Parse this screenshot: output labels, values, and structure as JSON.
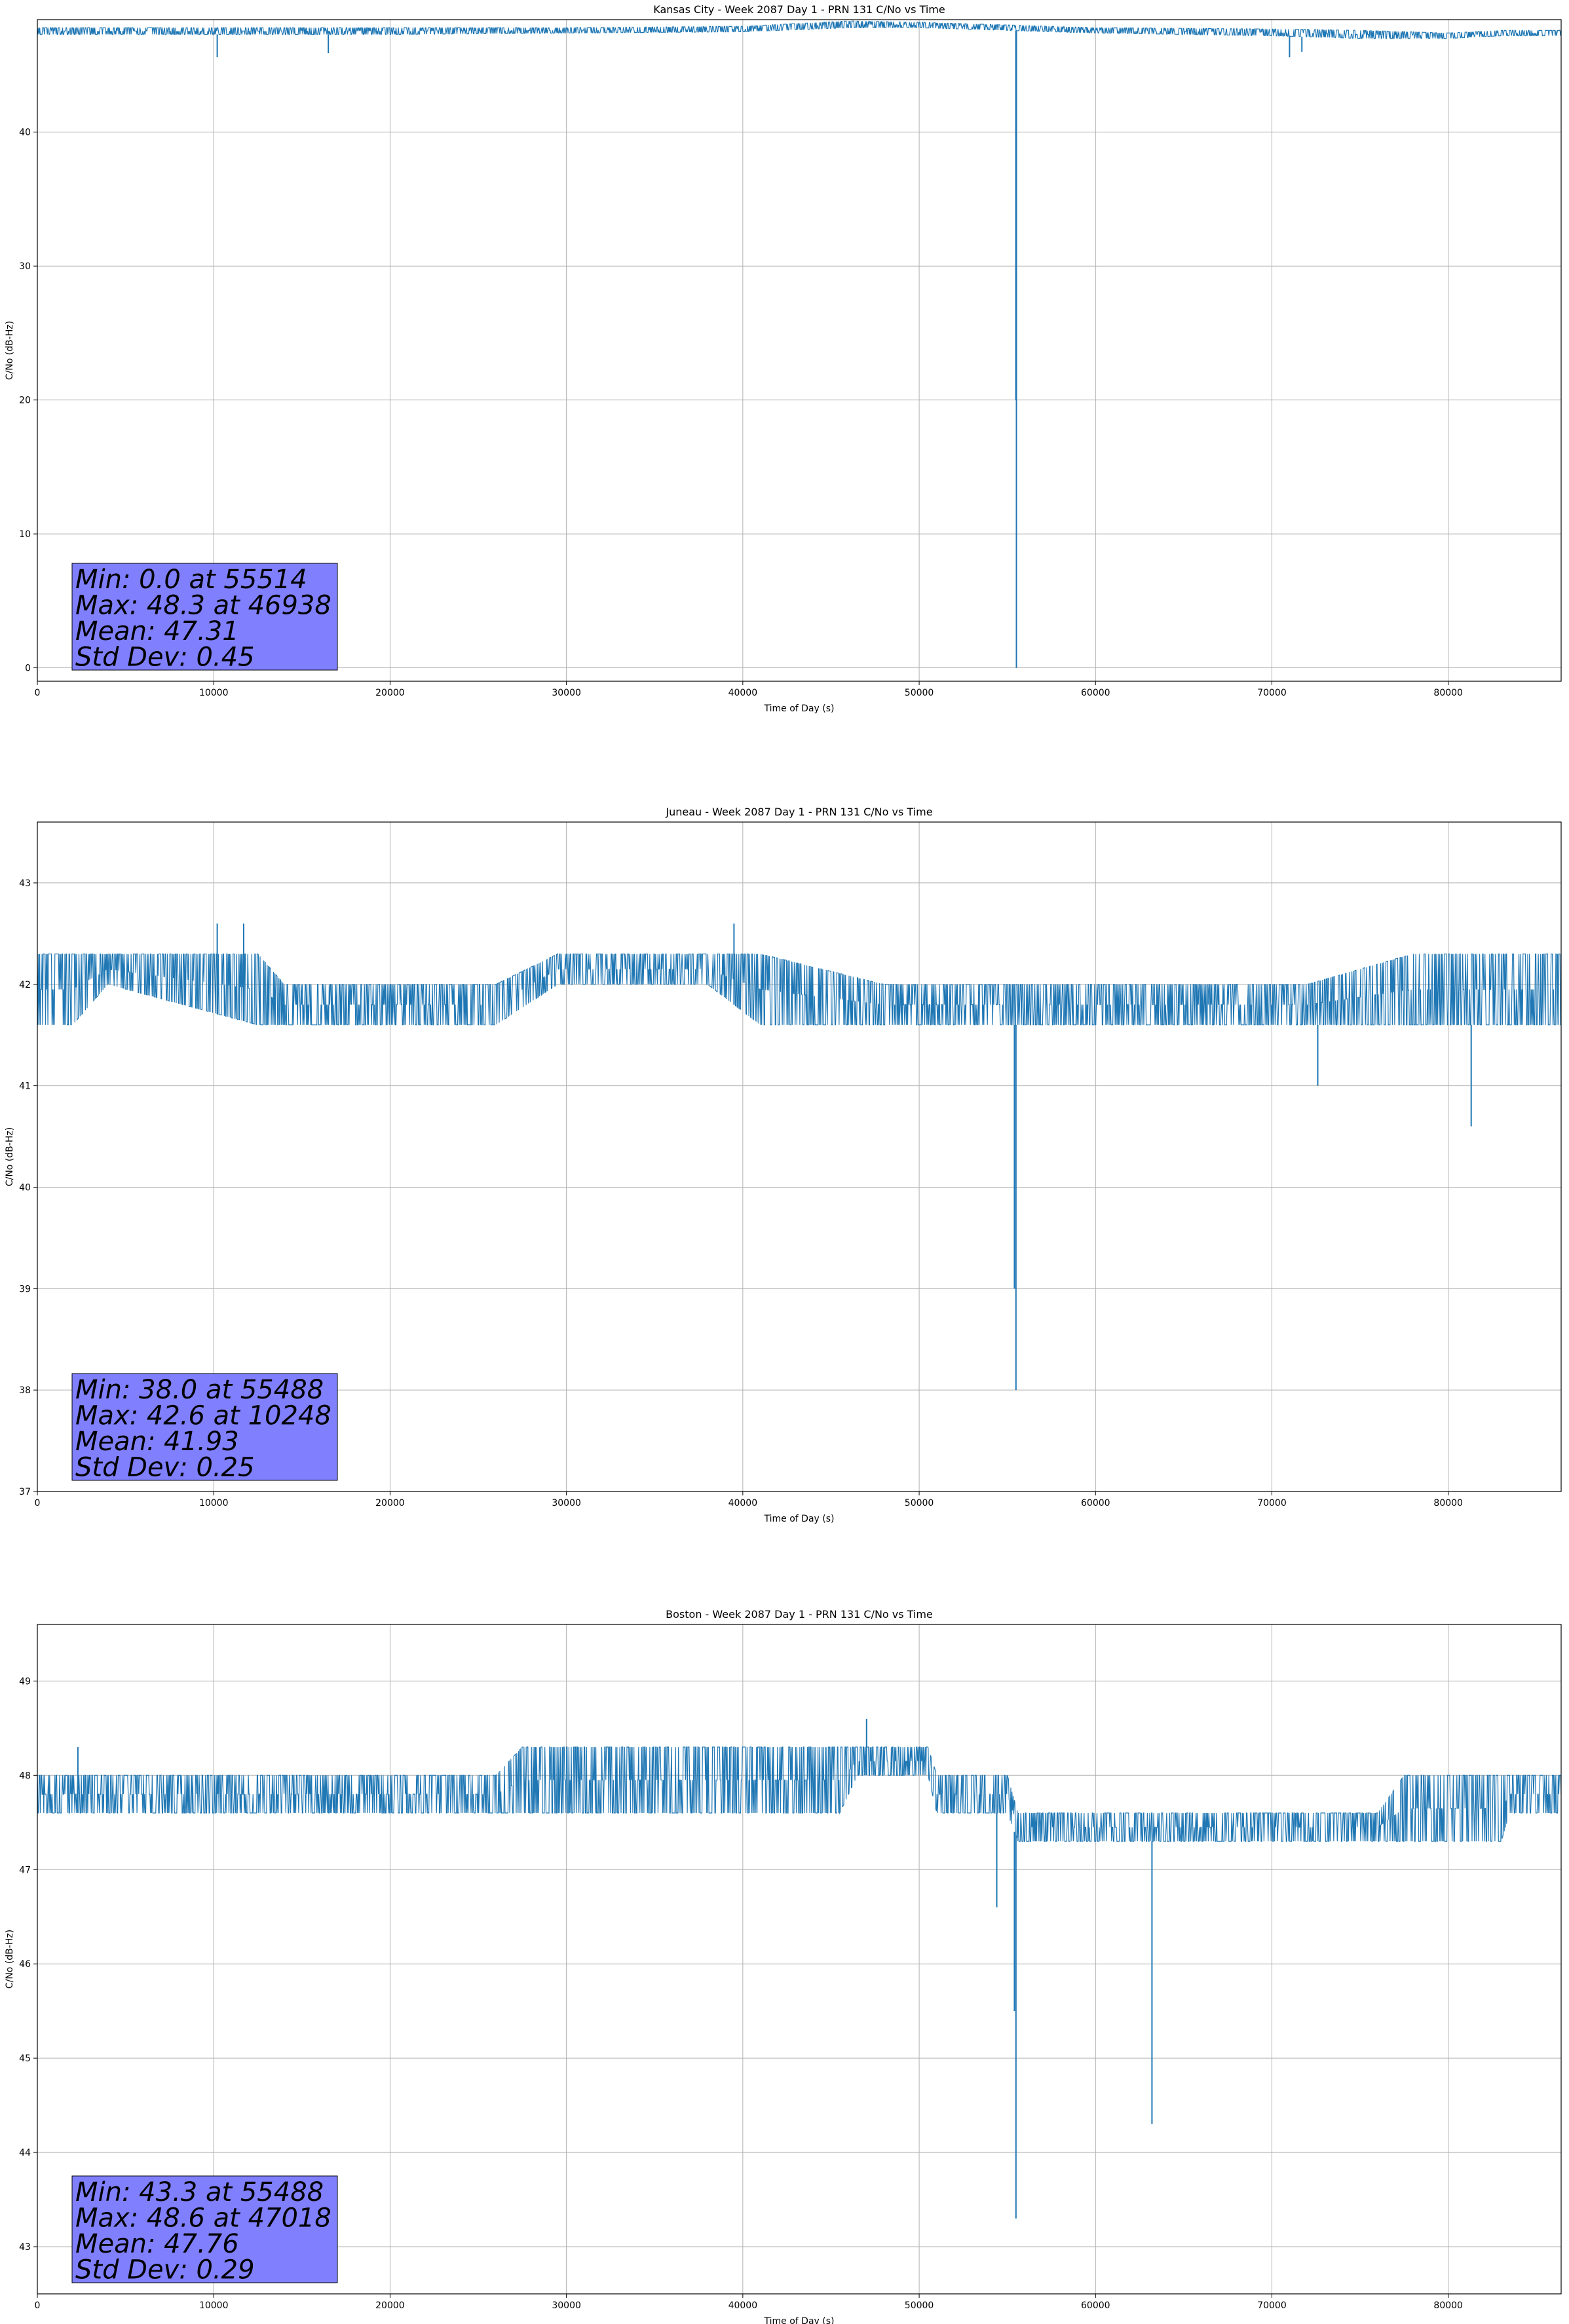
{
  "colors": {
    "line": "#1f77b4",
    "grid": "#b0b0b0",
    "statbox": "#8080ff"
  },
  "chart_data": [
    {
      "type": "line",
      "title": "Kansas City - Week 2087 Day 1 - PRN 131 C/No vs Time",
      "xlabel": "Time of Day (s)",
      "ylabel": "C/No (dB-Hz)",
      "xlim": [
        0,
        86400
      ],
      "ylim": [
        -1,
        48.4
      ],
      "xticks": [
        0,
        10000,
        20000,
        30000,
        40000,
        50000,
        60000,
        70000,
        80000
      ],
      "yticks": [
        0,
        10,
        20,
        30,
        40
      ],
      "grid": true,
      "band": [
        [
          0,
          47.3,
          47.8
        ],
        [
          20000,
          47.3,
          47.8
        ],
        [
          30000,
          47.4,
          47.8
        ],
        [
          40000,
          47.5,
          47.9
        ],
        [
          46000,
          47.8,
          48.3
        ],
        [
          50000,
          47.8,
          48.2
        ],
        [
          55000,
          47.6,
          48.0
        ],
        [
          60000,
          47.4,
          47.8
        ],
        [
          70000,
          47.2,
          47.7
        ],
        [
          75000,
          47.0,
          47.6
        ],
        [
          80000,
          47.0,
          47.4
        ],
        [
          83000,
          47.2,
          47.6
        ],
        [
          86400,
          47.2,
          47.6
        ]
      ],
      "spikes": [
        [
          10200,
          45.6
        ],
        [
          16500,
          45.9
        ],
        [
          55480,
          20.0
        ],
        [
          55514,
          0.0
        ],
        [
          71000,
          45.6
        ],
        [
          71700,
          46.0
        ]
      ],
      "stats": [
        "Min: 0.0 at 55514",
        "Max: 48.3 at 46938",
        "Mean: 47.31",
        "Std Dev: 0.45"
      ]
    },
    {
      "type": "line",
      "title": "Juneau - Week 2087 Day 1 - PRN 131 C/No vs Time",
      "xlabel": "Time of Day (s)",
      "ylabel": "C/No (dB-Hz)",
      "xlim": [
        0,
        86400
      ],
      "ylim": [
        37,
        43.6
      ],
      "xticks": [
        0,
        10000,
        20000,
        30000,
        40000,
        50000,
        60000,
        70000,
        80000
      ],
      "yticks": [
        37,
        38,
        39,
        40,
        41,
        42,
        43
      ],
      "grid": true,
      "band": [
        [
          0,
          41.6,
          42.3
        ],
        [
          2000,
          41.6,
          42.3
        ],
        [
          4000,
          42.0,
          42.3
        ],
        [
          12500,
          41.6,
          42.3
        ],
        [
          14000,
          41.6,
          42.0
        ],
        [
          26000,
          41.6,
          42.0
        ],
        [
          29500,
          42.0,
          42.3
        ],
        [
          38000,
          42.0,
          42.3
        ],
        [
          41000,
          41.6,
          42.3
        ],
        [
          48000,
          41.6,
          42.0
        ],
        [
          60000,
          41.6,
          42.0
        ],
        [
          72000,
          41.6,
          42.0
        ],
        [
          78000,
          41.6,
          42.3
        ],
        [
          86400,
          41.6,
          42.3
        ]
      ],
      "spikes": [
        [
          10200,
          42.6
        ],
        [
          11700,
          42.6
        ],
        [
          39500,
          42.6
        ],
        [
          55400,
          39.0
        ],
        [
          55488,
          38.0
        ],
        [
          72600,
          41.0
        ],
        [
          81300,
          40.6
        ]
      ],
      "stats": [
        "Min: 38.0 at 55488",
        "Max: 42.6 at 10248",
        "Mean: 41.93",
        "Std Dev: 0.25"
      ]
    },
    {
      "type": "line",
      "title": "Boston - Week 2087 Day 1 - PRN 131 C/No vs Time",
      "xlabel": "Time of Day (s)",
      "ylabel": "C/No (dB-Hz)",
      "xlim": [
        0,
        86400
      ],
      "ylim": [
        42.5,
        49.6
      ],
      "xticks": [
        0,
        10000,
        20000,
        30000,
        40000,
        50000,
        60000,
        70000,
        80000
      ],
      "yticks": [
        43,
        44,
        45,
        46,
        47,
        48,
        49
      ],
      "grid": true,
      "band": [
        [
          0,
          47.6,
          48.0
        ],
        [
          26000,
          47.6,
          48.0
        ],
        [
          27500,
          47.6,
          48.3
        ],
        [
          45500,
          47.6,
          48.3
        ],
        [
          46500,
          48.0,
          48.3
        ],
        [
          50500,
          48.0,
          48.3
        ],
        [
          51000,
          47.6,
          48.0
        ],
        [
          55000,
          47.6,
          48.0
        ],
        [
          55600,
          47.3,
          47.6
        ],
        [
          70000,
          47.3,
          47.6
        ],
        [
          76000,
          47.3,
          47.6
        ],
        [
          77500,
          47.3,
          48.0
        ],
        [
          83000,
          47.3,
          48.0
        ],
        [
          83500,
          47.6,
          48.0
        ],
        [
          86400,
          47.6,
          48.0
        ]
      ],
      "spikes": [
        [
          2300,
          48.3
        ],
        [
          47018,
          48.6
        ],
        [
          54400,
          46.6
        ],
        [
          55400,
          45.5
        ],
        [
          55488,
          43.3
        ],
        [
          63200,
          44.3
        ]
      ],
      "stats": [
        "Min: 43.3 at 55488",
        "Max: 48.6 at 47018",
        "Mean: 47.76",
        "Std Dev: 0.29"
      ]
    }
  ]
}
